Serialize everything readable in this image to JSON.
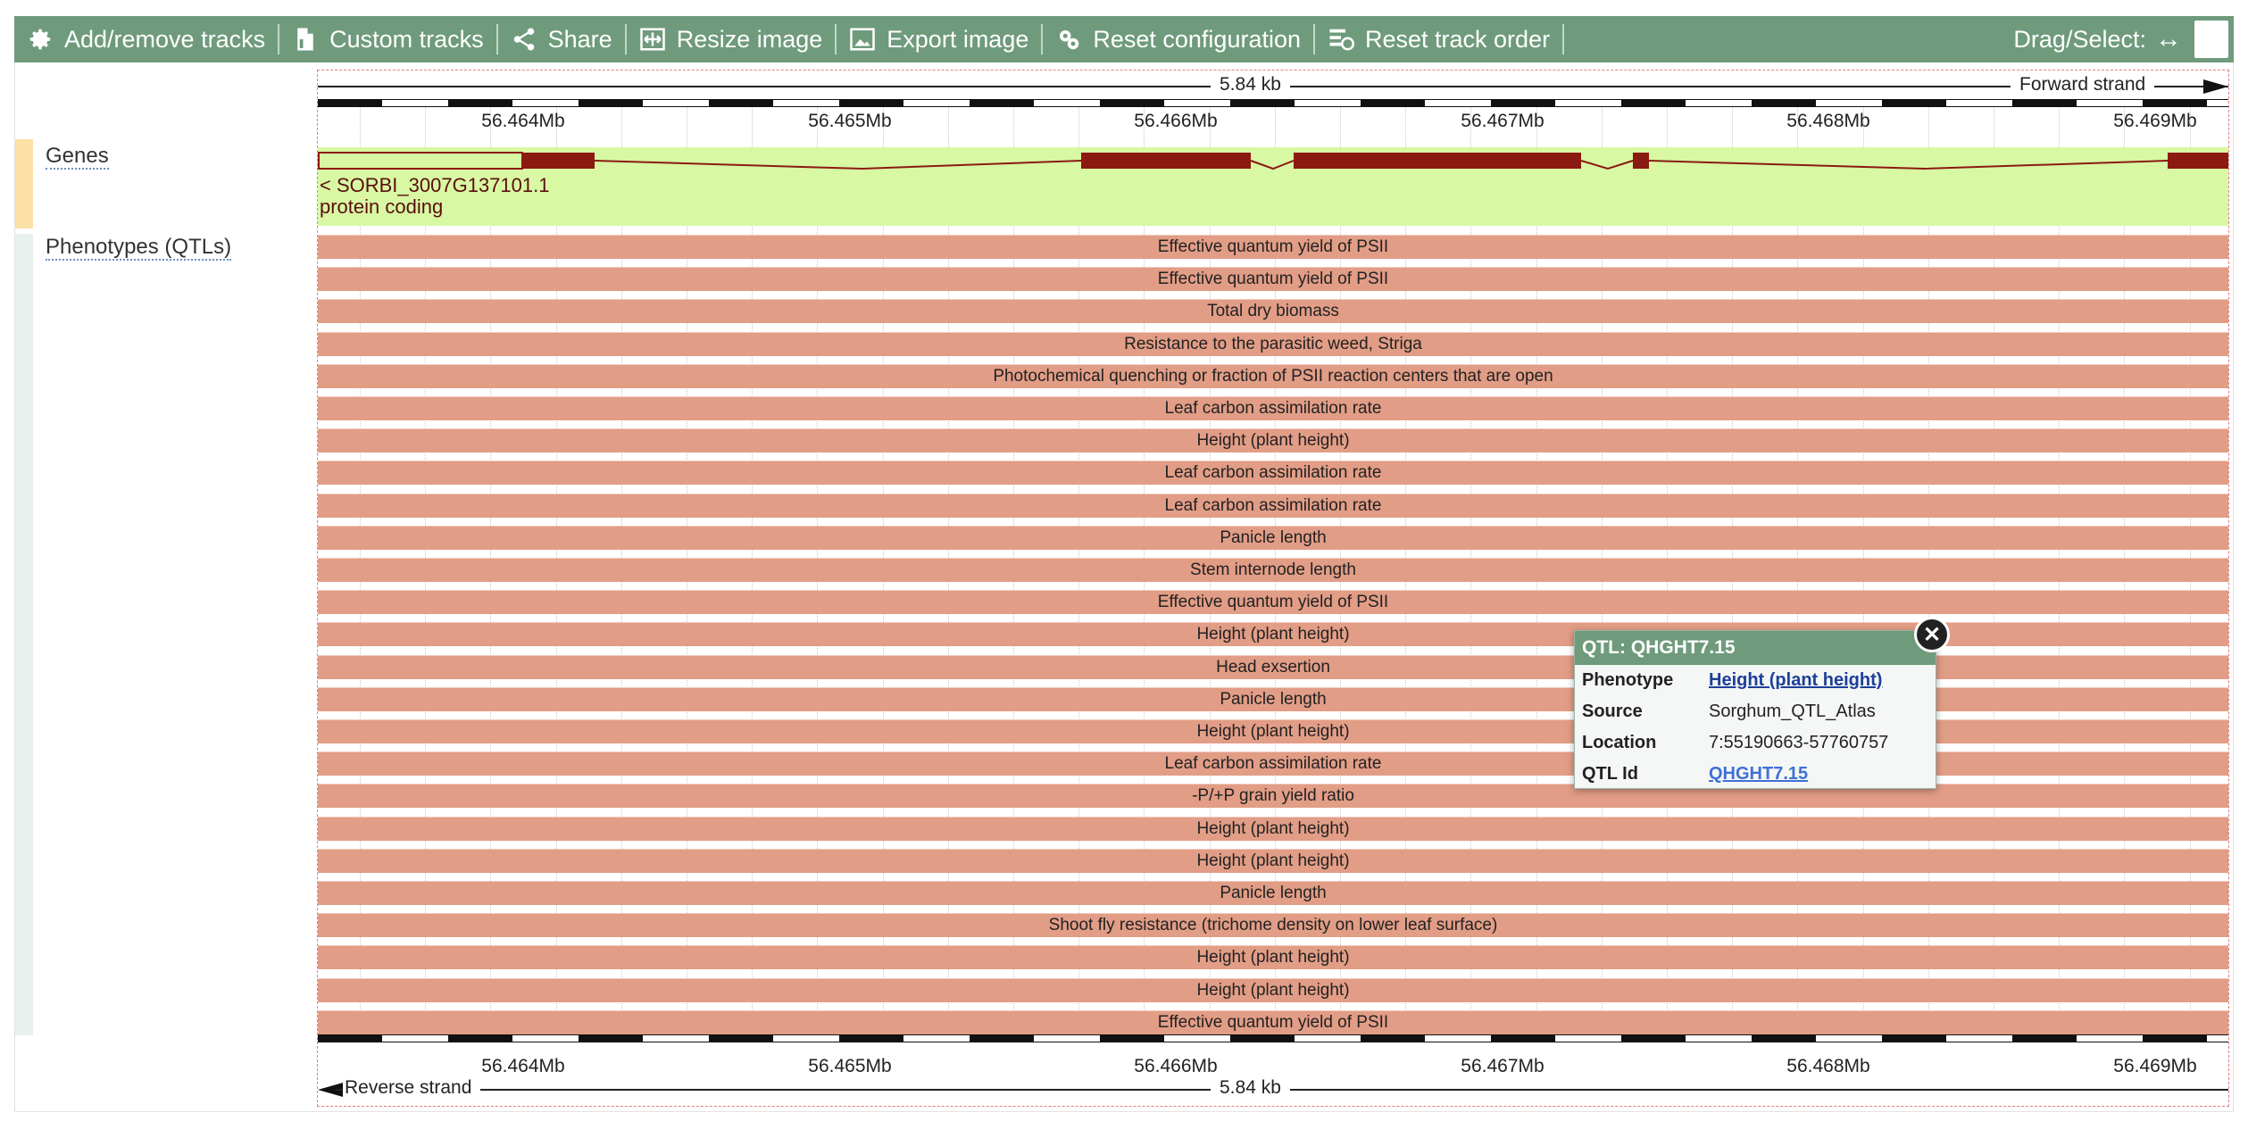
{
  "toolbar": {
    "buttons": [
      {
        "label": "Add/remove tracks",
        "icon": "gear-icon"
      },
      {
        "label": "Custom tracks",
        "icon": "custom-tracks-icon"
      },
      {
        "label": "Share",
        "icon": "share-icon"
      },
      {
        "label": "Resize image",
        "icon": "resize-icon"
      },
      {
        "label": "Export image",
        "icon": "export-image-icon"
      },
      {
        "label": "Reset configuration",
        "icon": "reset-config-icon"
      },
      {
        "label": "Reset track order",
        "icon": "reset-order-icon"
      }
    ],
    "drag_select_label": "Drag/Select:",
    "drag_select_icon": "↔"
  },
  "scale": {
    "length_label": "5.84 kb",
    "forward_strand": "Forward strand",
    "reverse_strand": "Reverse strand",
    "ticks": [
      "56.464Mb",
      "56.465Mb",
      "56.466Mb",
      "56.467Mb",
      "56.468Mb",
      "56.469Mb"
    ]
  },
  "tracks": {
    "genes_label": "Genes",
    "qtl_label": "Phenotypes (QTLs)"
  },
  "gene": {
    "name": "< SORBI_3007G137101.1",
    "biotype": "protein coding",
    "exon_color": "#8b1a10",
    "track_color": "#d8f8a4"
  },
  "qtls": [
    "Effective quantum yield of PSII",
    "Effective quantum yield of PSII",
    "Total dry biomass",
    "Resistance to the parasitic weed, Striga",
    "Photochemical quenching or fraction of PSII reaction centers that are open",
    "Leaf carbon assimilation rate",
    "Height (plant height)",
    "Leaf carbon assimilation rate",
    "Leaf carbon assimilation rate",
    "Panicle length",
    "Stem internode length",
    "Effective quantum yield of PSII",
    "Height (plant height)",
    "Head exsertion",
    "Panicle length",
    "Height (plant height)",
    "Leaf carbon assimilation rate",
    "-P/+P grain yield ratio",
    "Height (plant height)",
    "Height (plant height)",
    "Panicle length",
    "Shoot fly resistance (trichome density on lower leaf surface)",
    "Height (plant height)",
    "Height (plant height)",
    "Effective quantum yield of PSII"
  ],
  "popup": {
    "title": "QTL: QHGHT7.15",
    "rows": [
      {
        "key": "Phenotype",
        "value": "Height (plant height)",
        "link": true
      },
      {
        "key": "Source",
        "value": "Sorghum_QTL_Atlas",
        "link": false
      },
      {
        "key": "Location",
        "value": "7:55190663-57760757",
        "link": false
      },
      {
        "key": "QTL Id",
        "value": "QHGHT7.15",
        "link": true
      }
    ]
  },
  "colors": {
    "toolbar": "#6f9b7c",
    "qtl_bar": "#e29d86"
  }
}
